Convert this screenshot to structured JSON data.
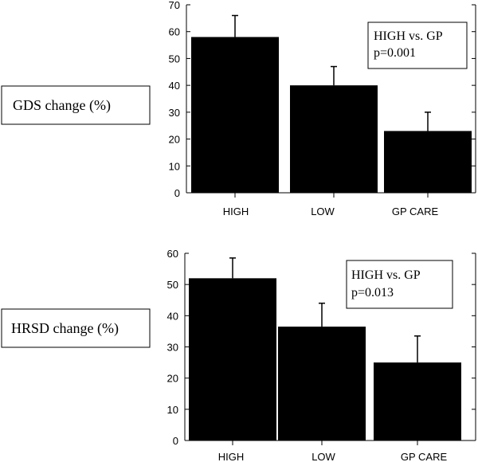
{
  "chart_data": [
    {
      "type": "bar",
      "ylabel": "GDS change (%)",
      "categories": [
        "HIGH",
        "LOW",
        "GP CARE"
      ],
      "values": [
        58,
        40,
        23
      ],
      "errors": [
        8,
        7,
        7
      ],
      "ylim": [
        0,
        70
      ],
      "yticks": [
        0,
        10,
        20,
        30,
        40,
        50,
        60,
        70
      ],
      "annotation": [
        "HIGH vs. GP",
        "p=0.001"
      ],
      "bar_color": "#000000",
      "grid": false
    },
    {
      "type": "bar",
      "ylabel": "HRSD change (%)",
      "categories": [
        "HIGH",
        "LOW",
        "GP CARE"
      ],
      "values": [
        52,
        36.5,
        25
      ],
      "errors": [
        6.5,
        7.5,
        8.5
      ],
      "ylim": [
        0,
        60
      ],
      "yticks": [
        0,
        10,
        20,
        30,
        40,
        50,
        60
      ],
      "annotation": [
        "HIGH vs. GP",
        "p=0.013"
      ],
      "bar_color": "#000000",
      "grid": false
    }
  ]
}
